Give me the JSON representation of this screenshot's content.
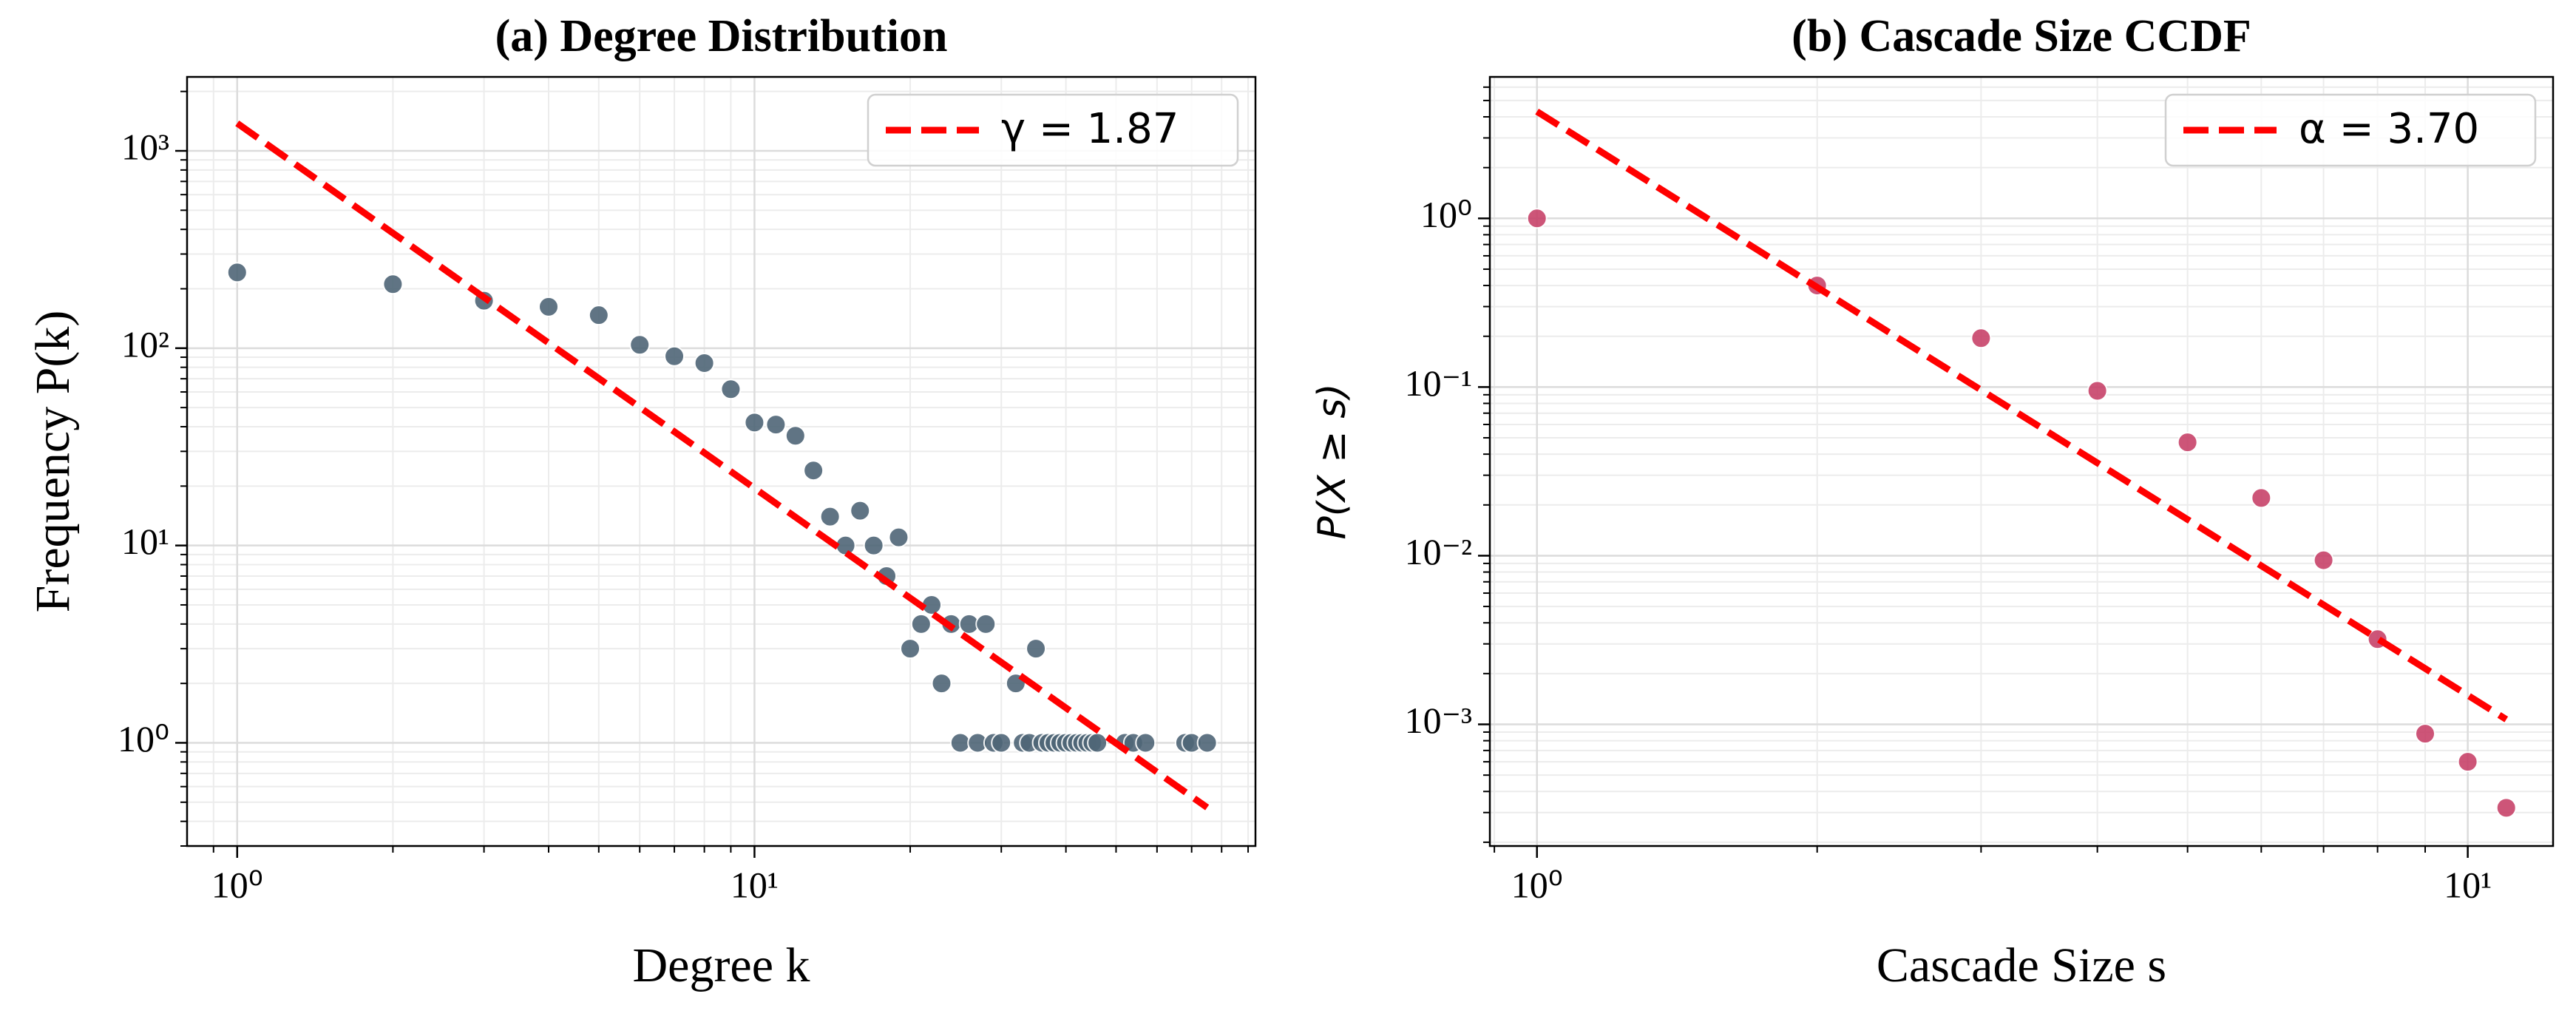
{
  "chart_data": [
    {
      "type": "scatter",
      "title": "(a) Degree Distribution",
      "xlabel": "Degree k",
      "ylabel": "Frequency P(k)",
      "xscale": "log",
      "yscale": "log",
      "xlim": [
        0.8,
        93
      ],
      "ylim": [
        0.3,
        2370
      ],
      "xticks": [
        {
          "value": 1,
          "label": "10⁰"
        },
        {
          "value": 10,
          "label": "10¹"
        }
      ],
      "yticks": [
        {
          "value": 1,
          "label": "10⁰"
        },
        {
          "value": 10,
          "label": "10¹"
        },
        {
          "value": 100,
          "label": "10²"
        },
        {
          "value": 1000,
          "label": "10³"
        }
      ],
      "grid": true,
      "legend": "upper right",
      "series": [
        {
          "type": "scatter",
          "color": "#4f6677",
          "x": [
            1,
            2,
            3,
            4,
            5,
            6,
            7,
            8,
            9,
            10,
            11,
            12,
            13,
            14,
            15,
            16,
            17,
            18,
            19,
            20,
            21,
            22,
            23,
            24,
            25,
            26,
            27,
            28,
            29,
            30,
            32,
            33,
            34,
            35,
            36,
            37,
            38,
            39,
            40,
            41,
            42,
            43,
            44,
            45,
            46,
            52,
            54,
            57,
            68,
            70,
            75
          ],
          "values": [
            242,
            211,
            174,
            162,
            147,
            104,
            91,
            84,
            62,
            42,
            41,
            36,
            24,
            14,
            10,
            15,
            10,
            7,
            11,
            3,
            4,
            5,
            2,
            4,
            1,
            4,
            1,
            4,
            1,
            1,
            2,
            1,
            1,
            3,
            1,
            1,
            1,
            1,
            1,
            1,
            1,
            1,
            1,
            1,
            1,
            1,
            1,
            1,
            1,
            1,
            1
          ]
        },
        {
          "type": "line",
          "name": "γ = 1.87",
          "color": "#ff0000",
          "linestyle": "dashed",
          "x": [
            1,
            75
          ],
          "values": [
            1380,
            0.47
          ]
        }
      ]
    },
    {
      "type": "scatter",
      "title": "(b) Cascade Size CCDF",
      "xlabel": "Cascade Size s",
      "ylabel": "P(X ≥ s)",
      "xscale": "log",
      "yscale": "log",
      "xlim": [
        0.89,
        12.35
      ],
      "ylim": [
        0.00019,
        6.9
      ],
      "xticks": [
        {
          "value": 1,
          "label": "10⁰"
        },
        {
          "value": 10,
          "label": "10¹"
        }
      ],
      "yticks": [
        {
          "value": 0.001,
          "label": "10⁻³"
        },
        {
          "value": 0.01,
          "label": "10⁻²"
        },
        {
          "value": 0.1,
          "label": "10⁻¹"
        },
        {
          "value": 1,
          "label": "10⁰"
        }
      ],
      "grid": true,
      "legend": "upper right",
      "series": [
        {
          "type": "scatter",
          "color": "#c8436a",
          "x": [
            1,
            2,
            3,
            4,
            5,
            6,
            7,
            8,
            9,
            10,
            11
          ],
          "values": [
            1.0,
            0.4,
            0.195,
            0.095,
            0.047,
            0.022,
            0.0094,
            0.0032,
            0.00088,
            0.0006,
            0.00032
          ]
        },
        {
          "type": "line",
          "name": "α = 3.70",
          "color": "#ff0000",
          "linestyle": "dashed",
          "x": [
            1,
            11
          ],
          "values": [
            4.3,
            0.00107
          ]
        }
      ]
    }
  ]
}
